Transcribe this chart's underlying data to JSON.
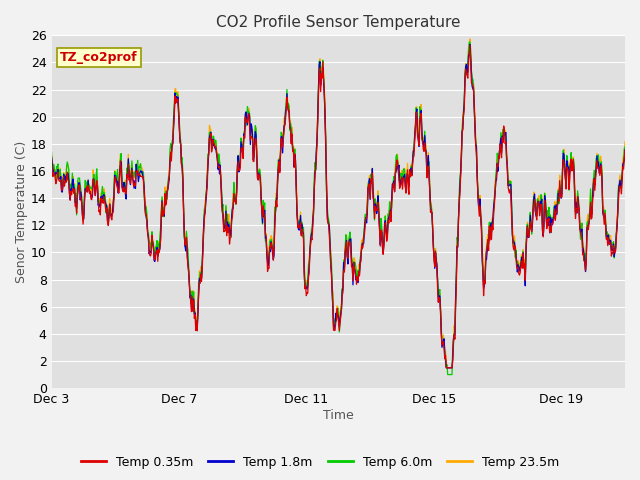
{
  "title": "CO2 Profile Sensor Temperature",
  "xlabel": "Time",
  "ylabel": "Senor Temperature (C)",
  "ylim": [
    0,
    26
  ],
  "yticks": [
    0,
    2,
    4,
    6,
    8,
    10,
    12,
    14,
    16,
    18,
    20,
    22,
    24,
    26
  ],
  "xtick_labels": [
    "Dec 3",
    "Dec 7",
    "Dec 11",
    "Dec 15",
    "Dec 19"
  ],
  "legend_label": "TZ_co2prof",
  "series_labels": [
    "Temp 0.35m",
    "Temp 1.8m",
    "Temp 6.0m",
    "Temp 23.5m"
  ],
  "series_colors": [
    "#dd0000",
    "#0000cc",
    "#00cc00",
    "#ffaa00"
  ],
  "fig_bg_color": "#f2f2f2",
  "plot_bg_color": "#e0e0e0",
  "grid_color": "#ffffff",
  "n_points": 800
}
